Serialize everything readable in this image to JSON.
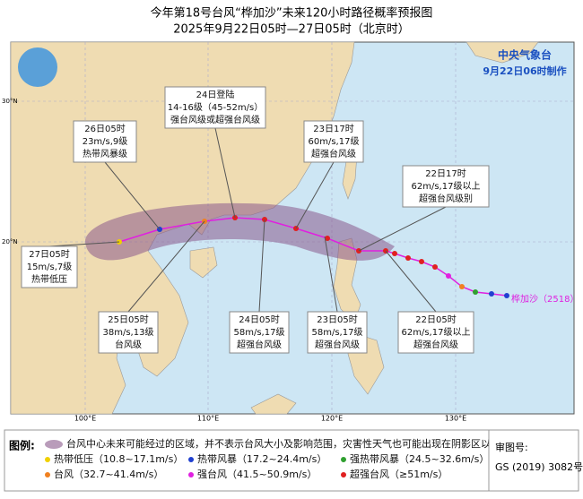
{
  "header": {
    "title": "今年第18号台风“桦加沙”未来120小时路径概率预报图",
    "subtitle": "2025年9月22日05时—27日05时（北京时）"
  },
  "agency": {
    "name": "中央气象台",
    "made": "9月22日06时制作"
  },
  "typhoon_label": "桦加沙（2518）",
  "lon_labels": [
    "100°E",
    "110°E",
    "120°E",
    "130°E"
  ],
  "lat_labels": [
    "20°N",
    "30°N"
  ],
  "annotations": [
    {
      "lines": [
        "24日登陆",
        "14-16级（45-52m/s）",
        "强台风级或超强台风级"
      ]
    },
    {
      "lines": [
        "26日05时",
        "23m/s,9级",
        "热带风暴级"
      ]
    },
    {
      "lines": [
        "23日17时",
        "60m/s,17级",
        "超强台风级"
      ]
    },
    {
      "lines": [
        "22日17时",
        "62m/s,17级以上",
        "超强台风级别"
      ]
    },
    {
      "lines": [
        "27日05时",
        "15m/s,7级",
        "热带低压"
      ]
    },
    {
      "lines": [
        "25日05时",
        "38m/s,13级",
        "台风级"
      ]
    },
    {
      "lines": [
        "24日05时",
        "58m/s,17级",
        "超强台风级"
      ]
    },
    {
      "lines": [
        "23日05时",
        "58m/s,17级",
        "超强台风级"
      ]
    },
    {
      "lines": [
        "22日05时",
        "62m/s,17级以上",
        "超强台风级"
      ]
    }
  ],
  "legend": {
    "title": "图例:",
    "cone": "台风中心未来可能经过的区域，并不表示台风大小及影响范围，灾害性天气也可能出现在阴影区以外",
    "items": [
      "热带低压（10.8~17.1m/s）",
      "热带风暴（17.2~24.4m/s）",
      "强热带风暴（24.5~32.6m/s）",
      "台风（32.7~41.4m/s）",
      "强台风（41.5~50.9m/s）",
      "超强台风（≥51m/s）"
    ]
  },
  "approval": {
    "label": "审图号:",
    "number": "GS (2019) 3082号"
  }
}
